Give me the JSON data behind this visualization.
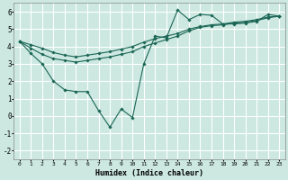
{
  "xlabel": "Humidex (Indice chaleur)",
  "bg_color": "#cce8e0",
  "grid_color": "#ffffff",
  "line_color": "#1a6655",
  "xlim": [
    -0.5,
    23.5
  ],
  "ylim": [
    -2.5,
    6.5
  ],
  "x_ticks": [
    0,
    1,
    2,
    3,
    4,
    5,
    6,
    7,
    8,
    9,
    10,
    11,
    12,
    13,
    14,
    15,
    16,
    17,
    18,
    19,
    20,
    21,
    22,
    23
  ],
  "y_ticks": [
    -2,
    -1,
    0,
    1,
    2,
    3,
    4,
    5,
    6
  ],
  "series": [
    {
      "x": [
        0,
        1,
        2,
        3,
        4,
        5,
        6,
        7,
        8,
        9,
        10,
        11,
        12,
        13,
        14,
        15,
        16,
        17,
        18,
        19,
        20,
        21,
        22,
        23
      ],
      "y": [
        4.3,
        3.6,
        3.0,
        2.0,
        1.5,
        1.4,
        1.4,
        0.3,
        -0.65,
        0.4,
        -0.1,
        3.0,
        4.6,
        4.5,
        6.1,
        5.55,
        5.85,
        5.8,
        5.3,
        5.3,
        5.35,
        5.45,
        5.85,
        5.75
      ]
    },
    {
      "x": [
        0,
        1,
        2,
        3,
        4,
        5,
        6,
        7,
        8,
        9,
        10,
        11,
        12,
        13,
        14,
        15,
        16,
        17,
        18,
        19,
        20,
        21,
        22,
        23
      ],
      "y": [
        4.3,
        3.9,
        3.55,
        3.3,
        3.2,
        3.1,
        3.2,
        3.3,
        3.4,
        3.55,
        3.7,
        4.0,
        4.2,
        4.4,
        4.6,
        4.9,
        5.1,
        5.2,
        5.25,
        5.35,
        5.4,
        5.5,
        5.65,
        5.75
      ]
    },
    {
      "x": [
        0,
        1,
        2,
        3,
        4,
        5,
        6,
        7,
        8,
        9,
        10,
        11,
        12,
        13,
        14,
        15,
        16,
        17,
        18,
        19,
        20,
        21,
        22,
        23
      ],
      "y": [
        4.3,
        4.1,
        3.9,
        3.65,
        3.5,
        3.4,
        3.5,
        3.6,
        3.7,
        3.85,
        4.0,
        4.25,
        4.45,
        4.6,
        4.75,
        5.0,
        5.15,
        5.25,
        5.3,
        5.4,
        5.45,
        5.55,
        5.7,
        5.75
      ]
    }
  ]
}
